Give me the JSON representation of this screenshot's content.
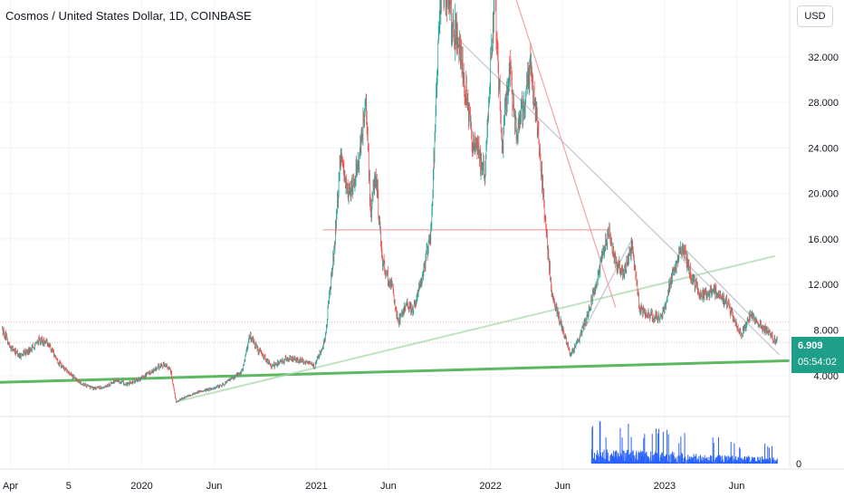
{
  "header": {
    "title": "Cosmos / United States Dollar, 1D, COINBASE",
    "currency_button": "USD"
  },
  "price_tag": {
    "price": "6.909",
    "countdown": "05:54:02",
    "color": "#1f9e89"
  },
  "colors": {
    "up": "#26a69a",
    "down": "#ef5350",
    "volume": "#2962ff",
    "support": "#4caf50",
    "trend_light": "#a5d6a7",
    "channel": "#b2b5be",
    "resistance": "#ef9a9a",
    "grid": "#f0f3fa"
  },
  "chart_data": {
    "type": "candlestick",
    "title": "Cosmos / United States Dollar, 1D, COINBASE",
    "price_axis": {
      "ticks": [
        "32.000",
        "28.000",
        "24.000",
        "20.000",
        "16.000",
        "12.000",
        "8.000",
        "4.000"
      ],
      "tick_values": [
        32,
        28,
        24,
        20,
        16,
        12,
        8,
        4
      ],
      "range": [
        0.4,
        37
      ]
    },
    "time_axis": {
      "labels": [
        "Apr",
        "5",
        "2020",
        "Jun",
        "2021",
        "Jun",
        "2022",
        "Jun",
        "2023",
        "Jun"
      ],
      "label_dates": [
        "2019-04-01",
        "2019-08-01",
        "2020-01-01",
        "2020-06-01",
        "2021-01-01",
        "2021-06-01",
        "2022-01-01",
        "2022-06-01",
        "2023-01-01",
        "2023-06-01"
      ],
      "range": [
        "2019-03-10",
        "2023-09-20"
      ]
    },
    "price_path": [
      [
        "2019-03-14",
        8.0
      ],
      [
        "2019-04-01",
        6.5
      ],
      [
        "2019-04-20",
        5.8
      ],
      [
        "2019-05-10",
        6.2
      ],
      [
        "2019-06-01",
        7.1
      ],
      [
        "2019-06-20",
        6.8
      ],
      [
        "2019-07-10",
        5.2
      ],
      [
        "2019-08-01",
        4.2
      ],
      [
        "2019-08-25",
        3.4
      ],
      [
        "2019-09-20",
        2.9
      ],
      [
        "2019-10-15",
        3.0
      ],
      [
        "2019-11-10",
        3.6
      ],
      [
        "2019-12-01",
        3.2
      ],
      [
        "2020-01-01",
        3.8
      ],
      [
        "2020-01-20",
        4.3
      ],
      [
        "2020-02-15",
        5.0
      ],
      [
        "2020-03-01",
        4.6
      ],
      [
        "2020-03-13",
        1.7
      ],
      [
        "2020-04-01",
        2.1
      ],
      [
        "2020-05-01",
        2.6
      ],
      [
        "2020-06-10",
        3.0
      ],
      [
        "2020-07-10",
        3.8
      ],
      [
        "2020-07-30",
        4.4
      ],
      [
        "2020-08-15",
        7.6
      ],
      [
        "2020-09-01",
        6.2
      ],
      [
        "2020-10-01",
        4.8
      ],
      [
        "2020-11-01",
        5.5
      ],
      [
        "2020-12-01",
        5.3
      ],
      [
        "2020-12-28",
        4.8
      ],
      [
        "2021-01-20",
        7.3
      ],
      [
        "2021-02-10",
        16.5
      ],
      [
        "2021-02-20",
        23.0
      ],
      [
        "2021-03-10",
        20.0
      ],
      [
        "2021-03-30",
        22.5
      ],
      [
        "2021-04-15",
        27.5
      ],
      [
        "2021-04-25",
        18.0
      ],
      [
        "2021-05-05",
        22.0
      ],
      [
        "2021-05-20",
        14.0
      ],
      [
        "2021-06-10",
        11.5
      ],
      [
        "2021-06-22",
        8.5
      ],
      [
        "2021-07-10",
        10.5
      ],
      [
        "2021-07-22",
        9.5
      ],
      [
        "2021-08-15",
        13.5
      ],
      [
        "2021-08-30",
        17.0
      ],
      [
        "2021-09-10",
        29.0
      ],
      [
        "2021-09-20",
        39.0
      ],
      [
        "2021-10-05",
        36.0
      ],
      [
        "2021-10-25",
        33.5
      ],
      [
        "2021-11-10",
        29.0
      ],
      [
        "2021-11-25",
        24.5
      ],
      [
        "2021-12-05",
        24.0
      ],
      [
        "2021-12-20",
        21.5
      ],
      [
        "2022-01-10",
        38.0
      ],
      [
        "2022-01-25",
        24.0
      ],
      [
        "2022-02-10",
        31.0
      ],
      [
        "2022-02-25",
        25.0
      ],
      [
        "2022-03-10",
        27.5
      ],
      [
        "2022-03-25",
        31.0
      ],
      [
        "2022-04-10",
        26.0
      ],
      [
        "2022-04-25",
        18.0
      ],
      [
        "2022-05-10",
        11.0
      ],
      [
        "2022-05-25",
        9.0
      ],
      [
        "2022-06-18",
        5.8
      ],
      [
        "2022-07-01",
        6.8
      ],
      [
        "2022-07-20",
        8.8
      ],
      [
        "2022-08-10",
        12.0
      ],
      [
        "2022-08-20",
        14.0
      ],
      [
        "2022-09-05",
        16.5
      ],
      [
        "2022-09-20",
        14.0
      ],
      [
        "2022-10-05",
        12.8
      ],
      [
        "2022-10-25",
        15.2
      ],
      [
        "2022-11-10",
        9.8
      ],
      [
        "2022-12-01",
        9.3
      ],
      [
        "2022-12-25",
        9.0
      ],
      [
        "2023-01-15",
        12.5
      ],
      [
        "2023-02-08",
        15.3
      ],
      [
        "2023-02-28",
        12.5
      ],
      [
        "2023-03-20",
        10.9
      ],
      [
        "2023-04-15",
        11.5
      ],
      [
        "2023-05-10",
        10.5
      ],
      [
        "2023-06-10",
        7.5
      ],
      [
        "2023-06-30",
        9.3
      ],
      [
        "2023-07-20",
        8.5
      ],
      [
        "2023-08-10",
        7.6
      ],
      [
        "2023-08-25",
        6.9
      ]
    ],
    "volume_window": [
      "2022-08-01",
      "2023-09-01"
    ],
    "drawings": [
      {
        "kind": "support",
        "points": [
          [
            "2019-03-10",
            3.4
          ],
          [
            "2023-09-20",
            5.3
          ]
        ]
      },
      {
        "kind": "trend_light",
        "points": [
          [
            "2020-03-13",
            1.7
          ],
          [
            "2023-08-20",
            14.5
          ]
        ]
      },
      {
        "kind": "channel",
        "points": [
          [
            "2021-10-15",
            34.0
          ],
          [
            "2023-08-30",
            5.8
          ]
        ]
      },
      {
        "kind": "channel",
        "points": [
          [
            "2023-02-08",
            15.3
          ],
          [
            "2023-08-25",
            6.9
          ]
        ]
      },
      {
        "kind": "channel",
        "points": [
          [
            "2022-06-18",
            5.8
          ],
          [
            "2022-10-25",
            16.0
          ]
        ]
      },
      {
        "kind": "resistance",
        "points": [
          [
            "2021-01-15",
            16.8
          ],
          [
            "2022-09-05",
            16.8
          ]
        ]
      },
      {
        "kind": "resistance",
        "points": [
          [
            "2022-02-01",
            40.0
          ],
          [
            "2022-09-20",
            10.0
          ]
        ]
      },
      {
        "kind": "resistance_dotted",
        "points": [
          [
            "2019-03-10",
            8.7
          ],
          [
            "2023-09-20",
            8.7
          ]
        ]
      },
      {
        "kind": "channel_dotted",
        "points": [
          [
            "2019-03-10",
            6.909
          ],
          [
            "2023-09-20",
            6.909
          ]
        ]
      }
    ]
  }
}
